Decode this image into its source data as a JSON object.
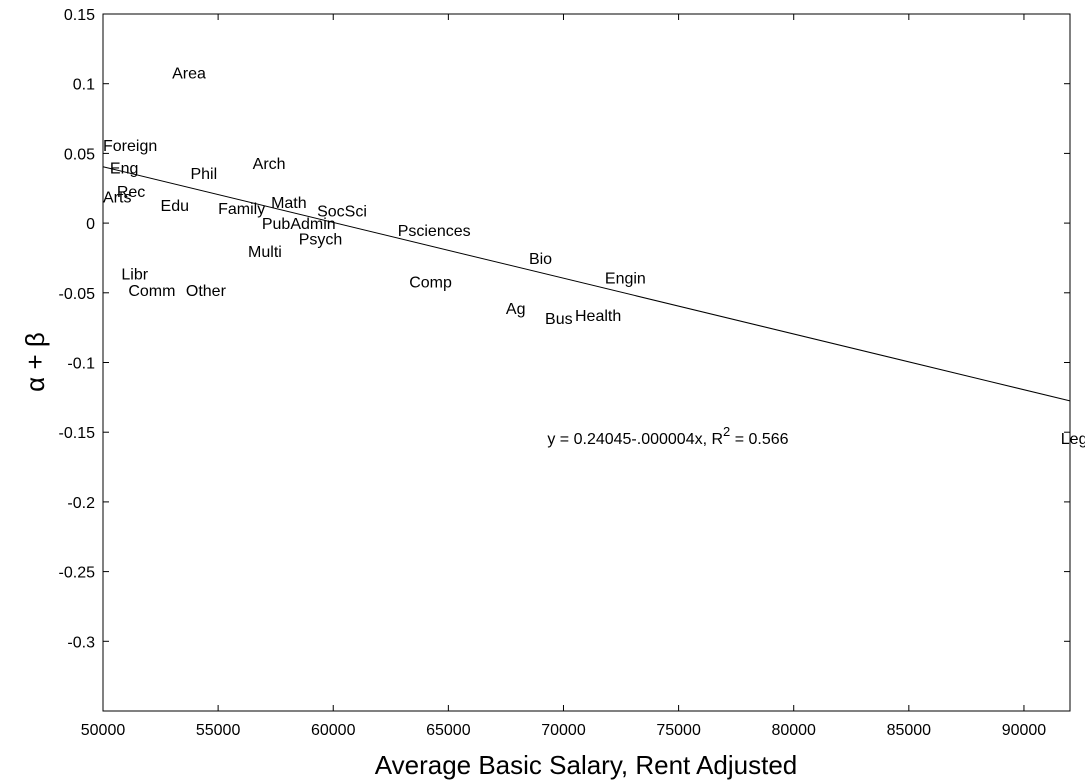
{
  "chart_data": {
    "type": "scatter",
    "title": "",
    "xlabel": "Average Basic Salary, Rent Adjusted",
    "ylabel": "α + β",
    "xlim": [
      50000,
      92000
    ],
    "ylim": [
      -0.35,
      0.15
    ],
    "xticks": [
      50000,
      55000,
      60000,
      65000,
      70000,
      75000,
      80000,
      85000,
      90000
    ],
    "yticks": [
      0.15,
      0.1,
      0.05,
      0,
      -0.05,
      -0.1,
      -0.15,
      -0.2,
      -0.25,
      -0.3
    ],
    "ytick_labels": [
      "0.15",
      "0.1",
      "0.05",
      "0",
      "-0.05",
      "-0.1",
      "-0.15",
      "-0.2",
      "-0.25",
      "-0.3"
    ],
    "grid": false,
    "points": [
      {
        "label": "Area",
        "x": 53000,
        "y": 0.108
      },
      {
        "label": "Foreign",
        "x": 50000,
        "y": 0.056
      },
      {
        "label": "Eng",
        "x": 50300,
        "y": 0.04
      },
      {
        "label": "Phil",
        "x": 53800,
        "y": 0.036
      },
      {
        "label": "Arch",
        "x": 56500,
        "y": 0.043
      },
      {
        "label": "Rec",
        "x": 50600,
        "y": 0.023
      },
      {
        "label": "Arts",
        "x": 50000,
        "y": 0.019
      },
      {
        "label": "Edu",
        "x": 52500,
        "y": 0.013
      },
      {
        "label": "Family",
        "x": 55000,
        "y": 0.011
      },
      {
        "label": "Math",
        "x": 57300,
        "y": 0.015
      },
      {
        "label": "SocSci",
        "x": 59300,
        "y": 0.009
      },
      {
        "label": "PubAdmin",
        "x": 56900,
        "y": 0.0
      },
      {
        "label": "Psych",
        "x": 58500,
        "y": -0.011
      },
      {
        "label": "Psciences",
        "x": 62800,
        "y": -0.005
      },
      {
        "label": "Multi",
        "x": 56300,
        "y": -0.02
      },
      {
        "label": "Libr",
        "x": 50800,
        "y": -0.036
      },
      {
        "label": "Comm",
        "x": 51100,
        "y": -0.048
      },
      {
        "label": "Other",
        "x": 53600,
        "y": -0.048
      },
      {
        "label": "Comp",
        "x": 63300,
        "y": -0.042
      },
      {
        "label": "Bio",
        "x": 68500,
        "y": -0.025
      },
      {
        "label": "Engin",
        "x": 71800,
        "y": -0.039
      },
      {
        "label": "Ag",
        "x": 67500,
        "y": -0.061
      },
      {
        "label": "Bus",
        "x": 69200,
        "y": -0.068
      },
      {
        "label": "Health",
        "x": 70500,
        "y": -0.066
      },
      {
        "label": "Legal",
        "x": 91600,
        "y": -0.154
      }
    ],
    "fit_line": {
      "intercept": 0.24045,
      "slope": -4e-06,
      "x_range": [
        50000,
        92000
      ]
    },
    "annotation": {
      "prefix": "y = 0.24045-.000004x, R",
      "sup": "2",
      "suffix": " = 0.566",
      "x": 69300,
      "y": -0.154
    }
  }
}
